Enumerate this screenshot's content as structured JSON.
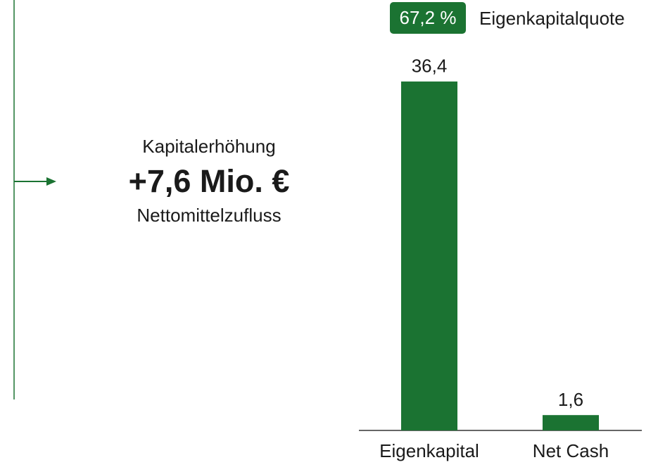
{
  "chart_data": {
    "type": "bar",
    "categories": [
      "Eigenkapital",
      "Net Cash"
    ],
    "values": [
      36.4,
      1.6
    ],
    "value_labels": [
      "36,4",
      "1,6"
    ],
    "color": "#1b7332",
    "annotations": {
      "badge": "67,2 %",
      "badge_caption": "Eigenkapitalquote",
      "inflow_title": "Kapitalerhöhung",
      "inflow_amount": "+7,6 Mio. €",
      "inflow_caption": "Nettomittelzufluss"
    }
  }
}
